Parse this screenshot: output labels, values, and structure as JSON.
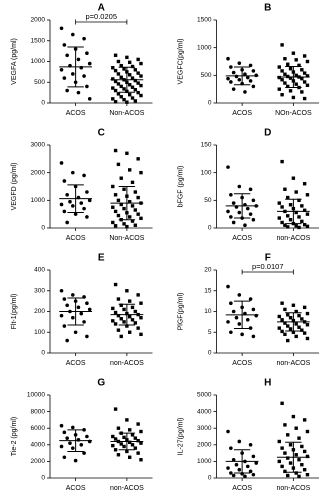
{
  "chart_data": [
    {
      "type": "strip",
      "title": "A",
      "ylabel": "VEGFA (pg/ml)",
      "categories": [
        "ACOS",
        "Non-ACOS"
      ],
      "markers": [
        "circle",
        "square"
      ],
      "color": "#000000",
      "values": [
        [
          1800,
          1650,
          1550,
          1400,
          1300,
          1200,
          1150,
          1050,
          950,
          900,
          850,
          800,
          700,
          650,
          600,
          500,
          400,
          300,
          250,
          100
        ],
        [
          1150,
          1100,
          1050,
          1000,
          980,
          950,
          900,
          880,
          850,
          820,
          800,
          780,
          750,
          720,
          700,
          680,
          650,
          620,
          600,
          580,
          560,
          540,
          520,
          500,
          480,
          460,
          440,
          420,
          400,
          380,
          360,
          340,
          320,
          300,
          280,
          250,
          220,
          200,
          180,
          150,
          120,
          100,
          80,
          50,
          30,
          20
        ]
      ],
      "mean": [
        870,
        560
      ],
      "sd": [
        480,
        300
      ],
      "annotation": "p=0.0205",
      "ylim": [
        0,
        2000
      ],
      "yticks": [
        0,
        500,
        1000,
        1500,
        2000
      ]
    },
    {
      "type": "strip",
      "title": "B",
      "ylabel": "VEGFC(pg/ml)",
      "categories": [
        "ACOS",
        "NOn-ACOS"
      ],
      "markers": [
        "circle",
        "square"
      ],
      "color": "#000000",
      "values": [
        [
          800,
          720,
          680,
          650,
          600,
          580,
          550,
          520,
          500,
          480,
          460,
          440,
          420,
          400,
          380,
          350,
          300,
          250,
          200
        ],
        [
          1050,
          900,
          850,
          800,
          780,
          750,
          700,
          680,
          650,
          620,
          600,
          580,
          560,
          540,
          520,
          500,
          490,
          480,
          470,
          460,
          450,
          440,
          420,
          400,
          380,
          360,
          340,
          320,
          300,
          280,
          250,
          220,
          200,
          150,
          100,
          80
        ]
      ],
      "mean": [
        490,
        470
      ],
      "sd": [
        160,
        190
      ],
      "ylim": [
        0,
        1500
      ],
      "yticks": [
        0,
        500,
        1000,
        1500
      ]
    },
    {
      "type": "strip",
      "title": "C",
      "ylabel": "VEGFD (pg/ml)",
      "categories": [
        "ACOS",
        "Non-ACOS"
      ],
      "markers": [
        "circle",
        "square"
      ],
      "color": "#000000",
      "values": [
        [
          2350,
          2000,
          1900,
          1700,
          1500,
          1300,
          1200,
          1100,
          1000,
          950,
          900,
          850,
          800,
          700,
          600,
          500,
          400,
          200
        ],
        [
          2800,
          2700,
          2500,
          2300,
          2100,
          2000,
          1800,
          1650,
          1500,
          1400,
          1300,
          1200,
          1150,
          1100,
          1000,
          950,
          900,
          850,
          800,
          750,
          700,
          650,
          600,
          550,
          500,
          450,
          400,
          350,
          300,
          250,
          200,
          150,
          100,
          80,
          50
        ]
      ],
      "mean": [
        1060,
        900
      ],
      "sd": [
        500,
        600
      ],
      "ylim": [
        0,
        3000
      ],
      "yticks": [
        0,
        1000,
        2000,
        3000
      ]
    },
    {
      "type": "strip",
      "title": "D",
      "ylabel": "bFGF (pg/ml)",
      "categories": [
        "ACOS",
        "non-ACOS"
      ],
      "markers": [
        "circle",
        "square"
      ],
      "color": "#000000",
      "values": [
        [
          110,
          75,
          70,
          60,
          55,
          50,
          45,
          42,
          40,
          38,
          35,
          30,
          28,
          25,
          20,
          18,
          15,
          10,
          5
        ],
        [
          120,
          90,
          80,
          70,
          65,
          60,
          55,
          50,
          45,
          42,
          40,
          38,
          35,
          32,
          30,
          28,
          25,
          22,
          20,
          18,
          15,
          12,
          10,
          8,
          6,
          5,
          4,
          3,
          2,
          1
        ]
      ],
      "mean": [
        40,
        30
      ],
      "sd": [
        22,
        22
      ],
      "ylim": [
        0,
        150
      ],
      "yticks": [
        0,
        50,
        100,
        150
      ]
    },
    {
      "type": "strip",
      "title": "E",
      "ylabel": "Flt-1(pg/ml)",
      "categories": [
        "ACOS",
        "non-ACOS"
      ],
      "markers": [
        "circle",
        "square"
      ],
      "color": "#000000",
      "values": [
        [
          300,
          280,
          270,
          260,
          250,
          240,
          230,
          220,
          210,
          200,
          190,
          180,
          170,
          150,
          130,
          100,
          80,
          60
        ],
        [
          330,
          300,
          280,
          260,
          250,
          240,
          230,
          220,
          215,
          210,
          200,
          195,
          190,
          185,
          180,
          175,
          170,
          165,
          160,
          155,
          150,
          145,
          140,
          130,
          120,
          110,
          100,
          90,
          80
        ]
      ],
      "mean": [
        200,
        185
      ],
      "sd": [
        65,
        50
      ],
      "ylim": [
        0,
        400
      ],
      "yticks": [
        0,
        100,
        200,
        300,
        400
      ]
    },
    {
      "type": "strip",
      "title": "F",
      "ylabel": "PlGF(pg/ml)",
      "categories": [
        "ACOS",
        "non-ACOS"
      ],
      "markers": [
        "circle",
        "square"
      ],
      "color": "#000000",
      "values": [
        [
          16,
          14,
          13,
          12,
          11,
          10.5,
          10,
          9.5,
          9,
          8.5,
          8,
          7.5,
          7,
          6,
          5,
          4.5,
          4
        ],
        [
          12,
          11.5,
          11,
          10.5,
          10,
          9.5,
          9.2,
          9,
          8.8,
          8.5,
          8.2,
          8,
          7.8,
          7.5,
          7.2,
          7,
          6.8,
          6.5,
          6.2,
          6,
          5.8,
          5.5,
          5.2,
          5,
          4.8,
          4.5,
          4,
          3.5,
          3
        ]
      ],
      "mean": [
        9.2,
        7.5
      ],
      "sd": [
        3.3,
        2.2
      ],
      "annotation": "p=0.0107",
      "ylim": [
        0,
        20
      ],
      "yticks": [
        0,
        5,
        10,
        15,
        20
      ]
    },
    {
      "type": "strip",
      "title": "G",
      "ylabel": "Tie-2 (pg/ml)",
      "categories": [
        "ACOS",
        "non-ACOS"
      ],
      "markers": [
        "circle",
        "square"
      ],
      "color": "#000000",
      "values": [
        [
          6300,
          6100,
          5800,
          5500,
          5200,
          5000,
          4800,
          4600,
          4400,
          4200,
          4000,
          3800,
          3600,
          3000,
          2500,
          2100
        ],
        [
          8300,
          7000,
          6500,
          6000,
          5800,
          5600,
          5400,
          5200,
          5000,
          4900,
          4800,
          4700,
          4600,
          4500,
          4400,
          4300,
          4200,
          4100,
          4000,
          3900,
          3800,
          3600,
          3400,
          3200,
          3000,
          2800,
          2500,
          2200
        ]
      ],
      "mean": [
        4500,
        4400
      ],
      "sd": [
        1300,
        1000
      ],
      "ylim": [
        0,
        10000
      ],
      "yticks": [
        0,
        2000,
        4000,
        6000,
        8000,
        10000
      ]
    },
    {
      "type": "strip",
      "title": "H",
      "ylabel": "IL-27(pg/ml)",
      "categories": [
        "ACOS",
        "non-ACOS"
      ],
      "markers": [
        "circle",
        "square"
      ],
      "color": "#000000",
      "values": [
        [
          2800,
          2200,
          2000,
          1800,
          1500,
          1300,
          1100,
          1000,
          900,
          800,
          700,
          600,
          500,
          400,
          300,
          250,
          200,
          150,
          100
        ],
        [
          4500,
          3700,
          3500,
          3200,
          3000,
          2800,
          2600,
          2400,
          2200,
          2000,
          1900,
          1800,
          1700,
          1600,
          1500,
          1400,
          1300,
          1200,
          1100,
          1000,
          900,
          800,
          700,
          600,
          500,
          400,
          300,
          200,
          150,
          100
        ]
      ],
      "mean": [
        1000,
        1250
      ],
      "sd": [
        700,
        900
      ],
      "ylim": [
        0,
        5000
      ],
      "yticks": [
        0,
        1000,
        2000,
        3000,
        4000,
        5000
      ]
    }
  ]
}
